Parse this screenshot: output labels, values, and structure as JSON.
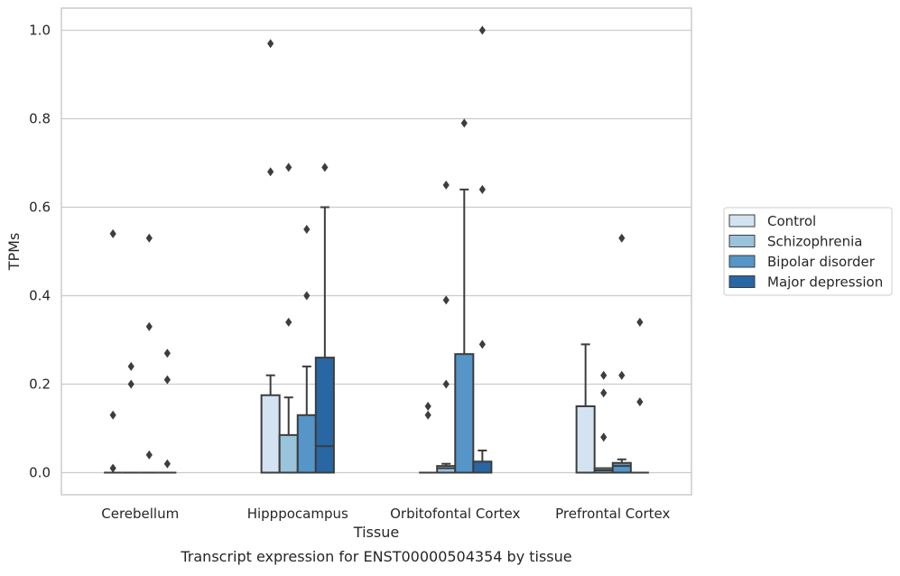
{
  "chart_data": {
    "type": "box",
    "xlabel": "Tissue",
    "ylabel": "TPMs",
    "caption": "Transcript expression for ENST00000504354 by tissue",
    "ylim": [
      -0.05,
      1.05
    ],
    "yticks": [
      0.0,
      0.2,
      0.4,
      0.6,
      0.8,
      1.0
    ],
    "ytick_labels": [
      "0.0",
      "0.2",
      "0.4",
      "0.6",
      "0.8",
      "1.0"
    ],
    "grid": "horizontal",
    "legend_position": "right",
    "categories": [
      "Cerebellum",
      "Hipppocampus",
      "Orbitofontal Cortex",
      "Prefrontal Cortex"
    ],
    "series": [
      {
        "name": "Control",
        "color": "#d3e3f1",
        "boxes": [
          {
            "q1": 0,
            "median": 0,
            "q3": 0,
            "whisker_low": 0,
            "whisker_high": 0,
            "outliers": [
              0.54,
              0.13,
              0.01
            ]
          },
          {
            "q1": 0,
            "median": 0,
            "q3": 0.175,
            "whisker_low": 0,
            "whisker_high": 0.22,
            "outliers": [
              0.97,
              0.68
            ]
          },
          {
            "q1": 0,
            "median": 0,
            "q3": 0,
            "whisker_low": 0,
            "whisker_high": 0,
            "outliers": [
              0.15,
              0.13
            ]
          },
          {
            "q1": 0,
            "median": 0,
            "q3": 0.15,
            "whisker_low": 0,
            "whisker_high": 0.29,
            "outliers": []
          }
        ]
      },
      {
        "name": "Schizophrenia",
        "color": "#9ac3dc",
        "boxes": [
          {
            "q1": 0,
            "median": 0,
            "q3": 0,
            "whisker_low": 0,
            "whisker_high": 0,
            "outliers": [
              0.24,
              0.2
            ]
          },
          {
            "q1": 0,
            "median": 0,
            "q3": 0.085,
            "whisker_low": 0,
            "whisker_high": 0.17,
            "outliers": [
              0.69,
              0.34
            ]
          },
          {
            "q1": 0,
            "median": 0.01,
            "q3": 0.015,
            "whisker_low": 0,
            "whisker_high": 0.02,
            "outliers": [
              0.65,
              0.39,
              0.2
            ]
          },
          {
            "q1": 0,
            "median": 0.005,
            "q3": 0.01,
            "whisker_low": 0,
            "whisker_high": 0.01,
            "outliers": [
              0.22,
              0.18,
              0.08
            ]
          }
        ]
      },
      {
        "name": "Bipolar disorder",
        "color": "#5595c8",
        "boxes": [
          {
            "q1": 0,
            "median": 0,
            "q3": 0,
            "whisker_low": 0,
            "whisker_high": 0,
            "outliers": [
              0.53,
              0.33,
              0.04
            ]
          },
          {
            "q1": 0,
            "median": 0,
            "q3": 0.13,
            "whisker_low": 0,
            "whisker_high": 0.24,
            "outliers": [
              0.55,
              0.4
            ]
          },
          {
            "q1": 0,
            "median": 0,
            "q3": 0.268,
            "whisker_low": 0,
            "whisker_high": 0.64,
            "outliers": [
              0.79
            ]
          },
          {
            "q1": 0,
            "median": 0.015,
            "q3": 0.022,
            "whisker_low": 0,
            "whisker_high": 0.03,
            "outliers": [
              0.53,
              0.22
            ]
          }
        ]
      },
      {
        "name": "Major depression",
        "color": "#2866a4",
        "boxes": [
          {
            "q1": 0,
            "median": 0,
            "q3": 0,
            "whisker_low": 0,
            "whisker_high": 0,
            "outliers": [
              0.27,
              0.21,
              0.02
            ]
          },
          {
            "q1": 0,
            "median": 0.06,
            "q3": 0.26,
            "whisker_low": 0,
            "whisker_high": 0.6,
            "outliers": [
              0.69
            ]
          },
          {
            "q1": 0,
            "median": 0,
            "q3": 0.025,
            "whisker_low": 0,
            "whisker_high": 0.05,
            "outliers": [
              1.0,
              0.64,
              0.29
            ]
          },
          {
            "q1": 0,
            "median": 0,
            "q3": 0,
            "whisker_low": 0,
            "whisker_high": 0,
            "outliers": [
              0.34,
              0.16
            ]
          }
        ]
      }
    ]
  }
}
